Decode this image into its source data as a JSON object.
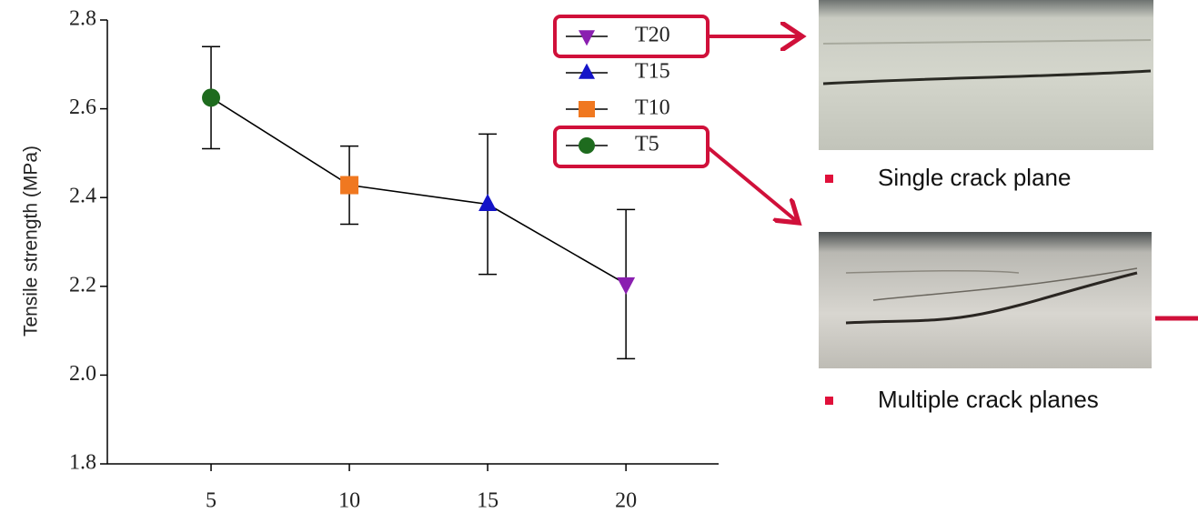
{
  "chart_data": {
    "type": "line",
    "y_label": "Tensile strength (MPa)",
    "x": [
      5,
      10,
      15,
      20
    ],
    "values": [
      2.625,
      2.428,
      2.385,
      2.205
    ],
    "errors": [
      0.115,
      0.088,
      0.158,
      0.168
    ],
    "point_styles": [
      {
        "name": "T5",
        "color": "#1e6b1e",
        "marker": "circle"
      },
      {
        "name": "T10",
        "color": "#f07820",
        "marker": "square"
      },
      {
        "name": "T15",
        "color": "#1414c8",
        "marker": "triangle-up"
      },
      {
        "name": "T20",
        "color": "#8a1fb0",
        "marker": "triangle-down"
      }
    ],
    "line_color": "#000000",
    "xlim": [
      1.25,
      23.35
    ],
    "xticks": [
      5,
      10,
      15,
      20
    ],
    "ylim": [
      1.8,
      2.8
    ],
    "yticks": [
      1.8,
      {
        "value": 2,
        "label": "2.0"
      },
      2.2,
      2.4,
      2.6,
      2.8
    ],
    "grid": false
  },
  "annotations": {
    "photo_1_caption": "Single crack plane",
    "photo_2_caption": "Multiple crack planes"
  }
}
